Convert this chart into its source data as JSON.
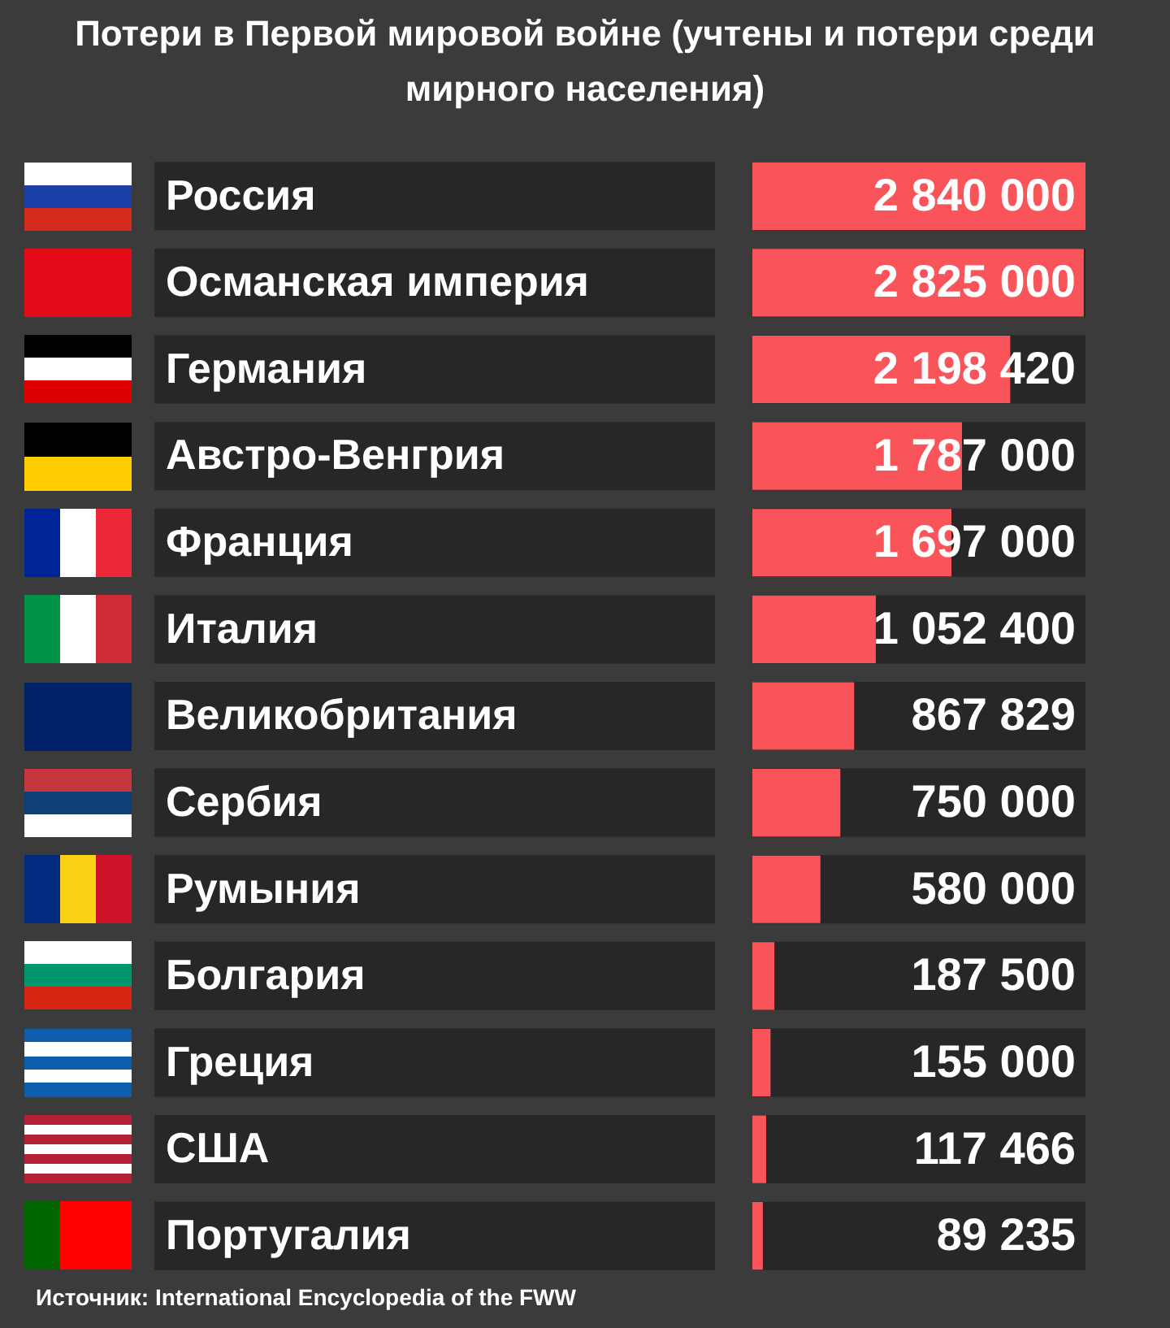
{
  "chart_data": {
    "type": "bar",
    "orientation": "horizontal",
    "title": "Потери в Первой мировой войне (учтены и потери среди мирного населения)",
    "categories": [
      "Россия",
      "Османская империя",
      "Германия",
      "Австро-Венгрия",
      "Франция",
      "Италия",
      "Великобритания",
      "Сербия",
      "Румыния",
      "Болгария",
      "Греция",
      "США",
      "Португалия"
    ],
    "values": [
      2840000,
      2825000,
      2198420,
      1787000,
      1697000,
      1052400,
      867829,
      750000,
      580000,
      187500,
      155000,
      117466,
      89235
    ],
    "color": "#f9545a",
    "xlim": [
      0,
      2840000
    ],
    "data_labels": true,
    "legend": false,
    "annotations": [
      "Источник: International Encyclopedia of the FWW"
    ]
  }
}
